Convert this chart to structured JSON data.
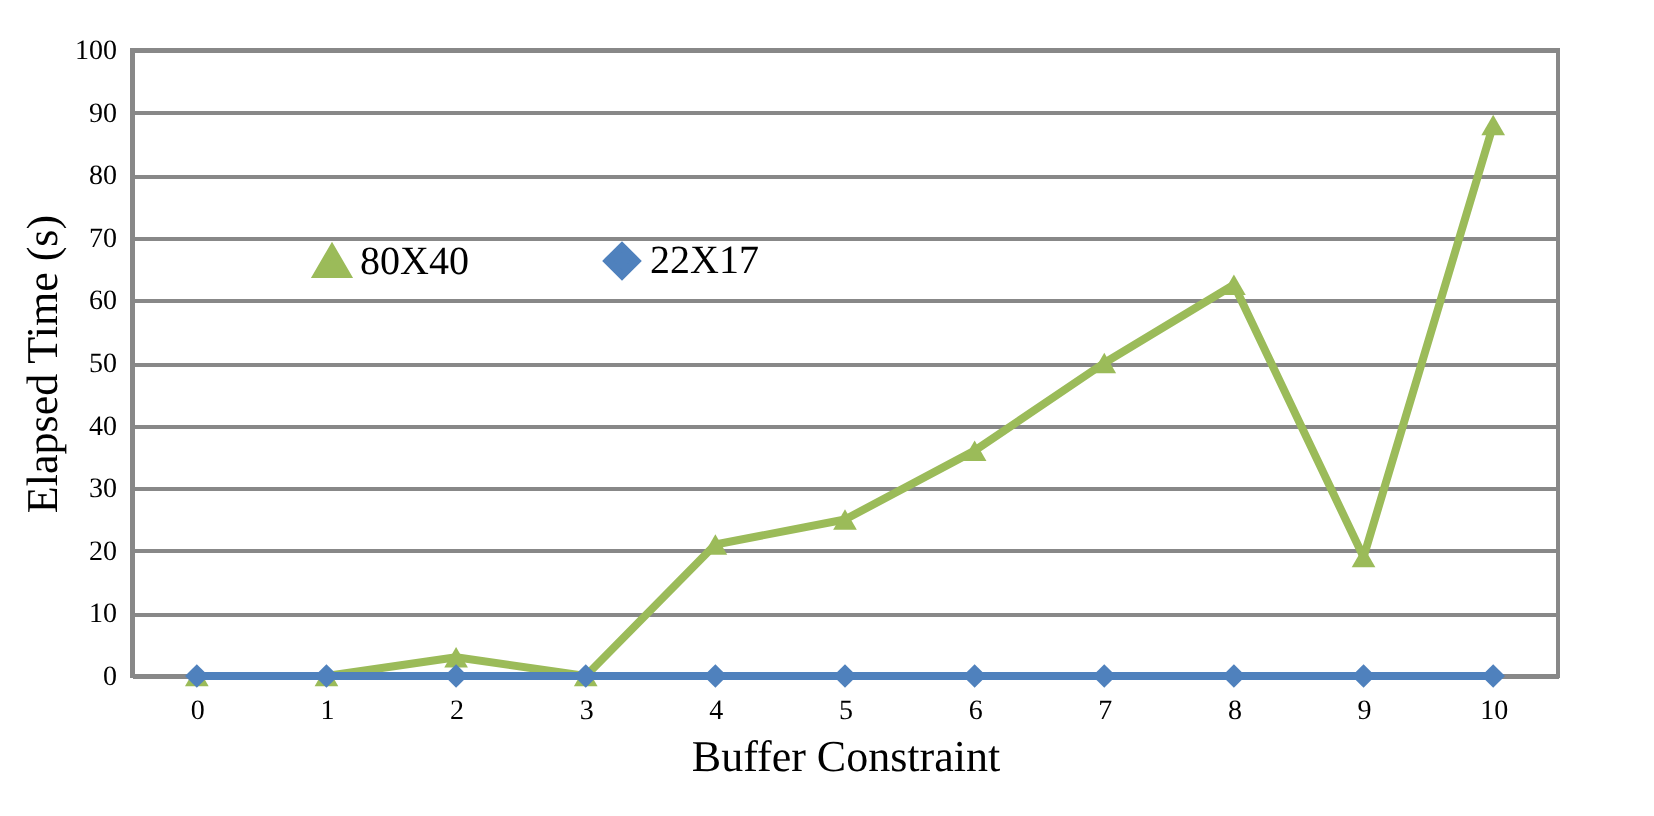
{
  "chart_data": {
    "type": "line",
    "xlabel": "Buffer Constraint",
    "ylabel": "Elapsed Time (s)",
    "categories": [
      "0",
      "1",
      "2",
      "3",
      "4",
      "5",
      "6",
      "7",
      "8",
      "9",
      "10"
    ],
    "series": [
      {
        "name": "80X40",
        "color": "#9bbb59",
        "marker": "triangle",
        "values": [
          0,
          0,
          3,
          0,
          21,
          25,
          36,
          50,
          62.5,
          19,
          88
        ]
      },
      {
        "name": "22X17",
        "color": "#4f81bd",
        "marker": "diamond",
        "values": [
          0,
          0,
          0,
          0,
          0,
          0,
          0,
          0,
          0,
          0,
          0
        ]
      }
    ],
    "ylim": [
      0,
      100
    ],
    "yticks": [
      0,
      10,
      20,
      30,
      40,
      50,
      60,
      70,
      80,
      90,
      100
    ],
    "grid": "y",
    "legend": "left",
    "line_style": "solid"
  }
}
